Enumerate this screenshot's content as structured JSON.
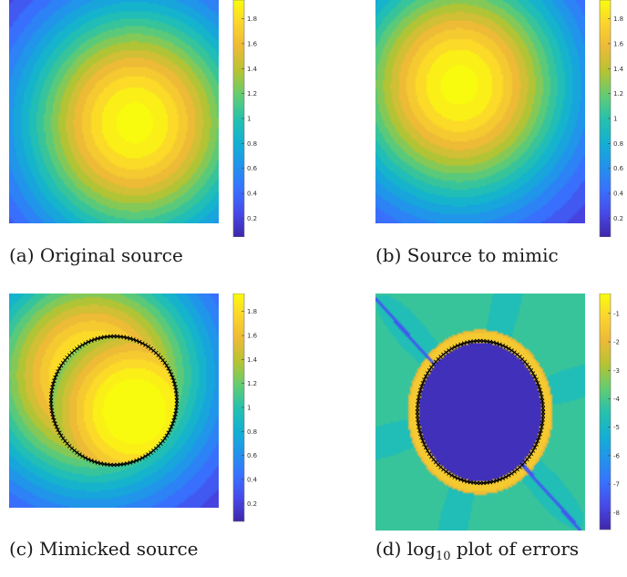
{
  "colors": {
    "colormap": "parula",
    "background": "#ffffff",
    "marker": "#000000"
  },
  "panels": [
    {
      "id": "a",
      "caption": "(a) Original source",
      "chart_data": {
        "type": "heatmap",
        "colormap": "parula",
        "description_of_field": "radially symmetric peak",
        "peak_value": 2.0,
        "peak_center": [
          0.6,
          0.55
        ],
        "colorbar_ticks": [
          0.2,
          0.4,
          0.6,
          0.8,
          1,
          1.2,
          1.4,
          1.6,
          1.8
        ],
        "colorbar_ticklabels": [
          "0.2",
          "0.4",
          "0.6",
          "0.8",
          "1",
          "1.2",
          "1.4",
          "1.6",
          "1.8"
        ],
        "color_range": [
          0.05,
          1.95
        ]
      }
    },
    {
      "id": "b",
      "caption": "(b) Source to mimic",
      "chart_data": {
        "type": "heatmap",
        "colormap": "parula",
        "peak_value": 2.0,
        "peak_center": [
          0.4,
          0.38
        ],
        "colorbar_ticks": [
          0.2,
          0.4,
          0.6,
          0.8,
          1,
          1.2,
          1.4,
          1.6,
          1.8
        ],
        "colorbar_ticklabels": [
          "0.2",
          "0.4",
          "0.6",
          "0.8",
          "1",
          "1.2",
          "1.4",
          "1.6",
          "1.8"
        ],
        "color_range": [
          0.05,
          1.95
        ]
      }
    },
    {
      "id": "c",
      "caption": "(c) Mimicked source",
      "chart_data": {
        "type": "heatmap",
        "colormap": "parula",
        "peak_value": 2.0,
        "outer_center": [
          0.4,
          0.38
        ],
        "inner_center": [
          0.6,
          0.55
        ],
        "circle_center": [
          0.5,
          0.5
        ],
        "circle_radius": 0.3,
        "colorbar_ticks": [
          0.2,
          0.4,
          0.6,
          0.8,
          1,
          1.2,
          1.4,
          1.6,
          1.8
        ],
        "colorbar_ticklabels": [
          "0.2",
          "0.4",
          "0.6",
          "0.8",
          "1",
          "1.2",
          "1.4",
          "1.6",
          "1.8"
        ],
        "color_range": [
          0.05,
          1.95
        ]
      }
    },
    {
      "id": "d",
      "caption_prefix": "(d) log",
      "caption_sub": "10",
      "caption_suffix": " plot of errors",
      "chart_data": {
        "type": "heatmap",
        "colormap": "parula",
        "background_level": -4.3,
        "inner_level": -8.4,
        "ring_level": -1.2,
        "circle_center": [
          0.5,
          0.5
        ],
        "circle_radius": 0.3,
        "colorbar_ticks": [
          -1,
          -2,
          -3,
          -4,
          -5,
          -6,
          -7,
          -8
        ],
        "colorbar_ticklabels": [
          "-1",
          "-2",
          "-3",
          "-4",
          "-5",
          "-6",
          "-7",
          "-8"
        ],
        "color_range": [
          -8.6,
          -0.3
        ]
      }
    }
  ]
}
